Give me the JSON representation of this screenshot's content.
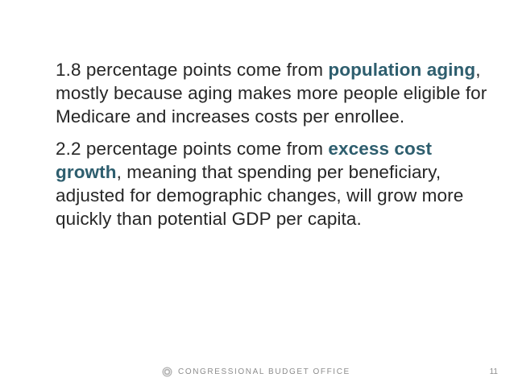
{
  "paragraphs": [
    {
      "before": "1.8 percentage points come from ",
      "highlight": "population aging",
      "after": ", mostly because aging makes more people eligible for Medicare and increases costs per enrollee."
    },
    {
      "before": "2.2 percentage points come from ",
      "highlight": "excess cost growth",
      "after": ", meaning that spending per beneficiary, adjusted for demographic changes, will grow more quickly than potential GDP per capita."
    }
  ],
  "footer": {
    "logo_icon": "cbo-seal-icon",
    "org_name": "CONGRESSIONAL BUDGET OFFICE",
    "page_number": "11"
  },
  "colors": {
    "highlight": "#2e5e6e",
    "body_text": "#262626",
    "footer_text": "#8c8c8c"
  }
}
